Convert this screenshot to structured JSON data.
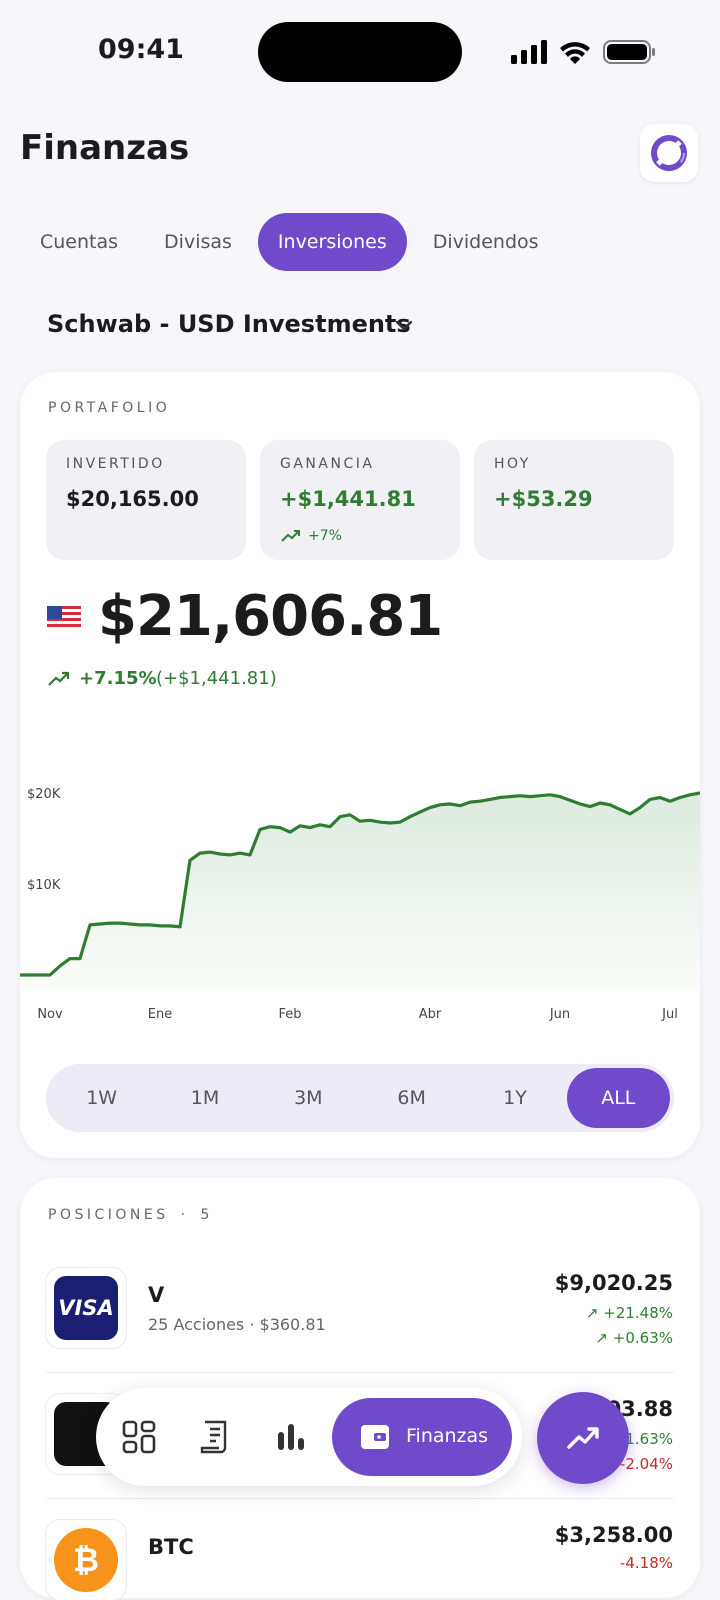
{
  "status_bar": {
    "time": "09:41"
  },
  "header": {
    "title": "Finanzas"
  },
  "tabs": [
    "Cuentas",
    "Divisas",
    "Inversiones",
    "Dividendos"
  ],
  "active_tab": 2,
  "account": "Schwab - USD Investments",
  "portfolio": {
    "label": "PORTAFOLIO",
    "stats": [
      {
        "label": "INVERTIDO",
        "value": "$20,165.00"
      },
      {
        "label": "GANANCIA",
        "value": "+$1,441.81",
        "change": "+7%"
      },
      {
        "label": "HOY",
        "value": "+$53.29"
      }
    ],
    "total": "$21,606.81",
    "change_pct": "+7.15%",
    "change_abs": "(+$1,441.81)"
  },
  "chart_data": {
    "type": "line",
    "color": "#2e7d32",
    "categories": [
      null,
      null,
      null,
      "Nov",
      null,
      null,
      null,
      null,
      null,
      null,
      null,
      null,
      null,
      null,
      "Ene",
      null,
      null,
      null,
      null,
      null,
      null,
      null,
      null,
      null,
      null,
      null,
      null,
      "Feb",
      null,
      null,
      null,
      null,
      null,
      null,
      null,
      null,
      null,
      null,
      null,
      null,
      null,
      "Abr",
      null,
      null,
      null,
      null,
      null,
      null,
      null,
      null,
      null,
      null,
      null,
      null,
      "Jun",
      null,
      null,
      null,
      null,
      null,
      null,
      null,
      null,
      null,
      null,
      "Jul",
      null,
      null,
      null
    ],
    "values": [
      0,
      0,
      0,
      0,
      1000,
      1800,
      1800,
      5500,
      5600,
      5700,
      5700,
      5600,
      5500,
      5500,
      5400,
      5400,
      5300,
      12600,
      13400,
      13500,
      13300,
      13200,
      13400,
      13200,
      16000,
      16300,
      16200,
      15700,
      16400,
      16200,
      16500,
      16300,
      17400,
      17600,
      16900,
      17000,
      16800,
      16700,
      16800,
      17400,
      17900,
      18400,
      18700,
      18800,
      18600,
      19000,
      19100,
      19300,
      19500,
      19600,
      19700,
      19600,
      19700,
      19800,
      19600,
      19200,
      18800,
      18500,
      18900,
      18700,
      18200,
      17700,
      18400,
      19300,
      19500,
      19100,
      19500,
      19800,
      20000
    ],
    "ylim": [
      0,
      23000
    ],
    "yticks": [
      {
        "value": 10000,
        "label": "$10K"
      },
      {
        "value": 20000,
        "label": "$20K"
      }
    ],
    "grid": false
  },
  "ranges": [
    "1W",
    "1M",
    "3M",
    "6M",
    "1Y",
    "ALL"
  ],
  "active_range": 5,
  "positions": {
    "label": "POSICIONES",
    "count": "5",
    "items": [
      {
        "name": "V",
        "detail": "25 Acciones · $360.81",
        "value": "$9,020.25",
        "changes": [
          "+21.48%",
          "+0.63%"
        ]
      },
      {
        "value": "03.88",
        "changes": [
          "1.63%",
          "-2.04%"
        ]
      },
      {
        "name": "BTC",
        "value": "$3,258.00",
        "changes": [
          "-4.18%"
        ]
      }
    ]
  },
  "nav": {
    "active_label": "Finanzas"
  }
}
